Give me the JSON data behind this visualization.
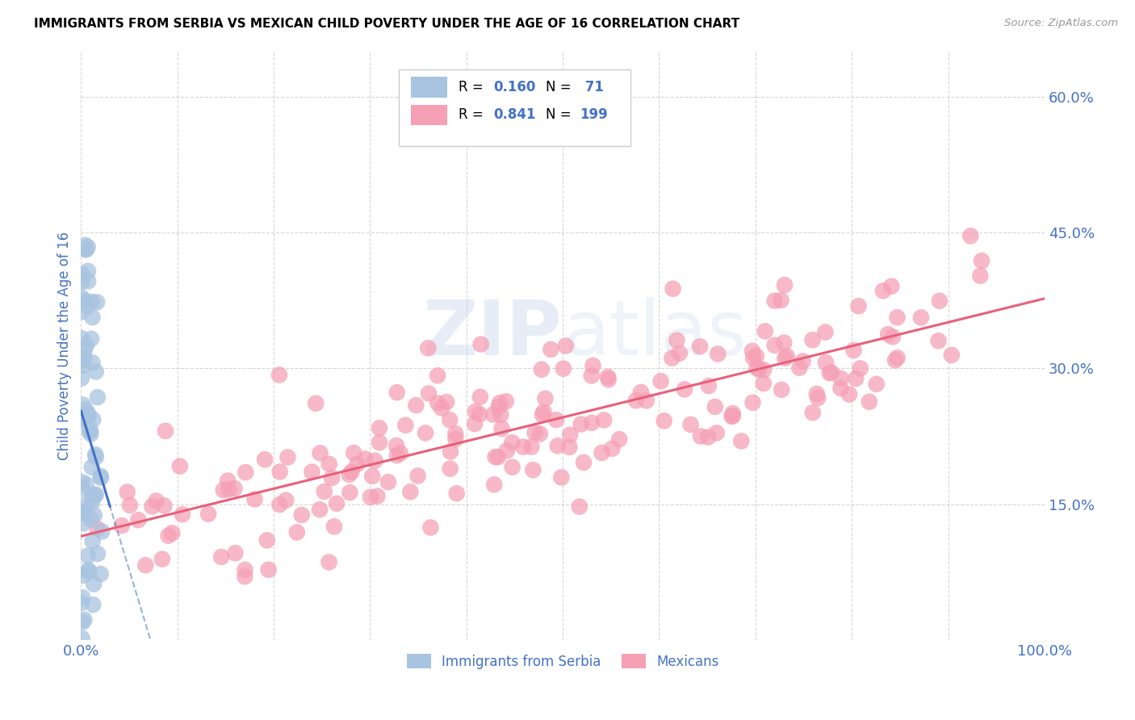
{
  "title": "IMMIGRANTS FROM SERBIA VS MEXICAN CHILD POVERTY UNDER THE AGE OF 16 CORRELATION CHART",
  "source": "Source: ZipAtlas.com",
  "ylabel": "Child Poverty Under the Age of 16",
  "xlim": [
    0.0,
    1.0
  ],
  "ylim": [
    0.0,
    0.65
  ],
  "ytick_vals": [
    0.0,
    0.15,
    0.3,
    0.45,
    0.6
  ],
  "ytick_labels": [
    "",
    "15.0%",
    "30.0%",
    "45.0%",
    "60.0%"
  ],
  "xtick_vals": [
    0.0,
    0.1,
    0.2,
    0.3,
    0.4,
    0.5,
    0.6,
    0.7,
    0.8,
    0.9,
    1.0
  ],
  "xtick_labels": [
    "0.0%",
    "",
    "",
    "",
    "",
    "",
    "",
    "",
    "",
    "",
    "100.0%"
  ],
  "serbia_R": 0.16,
  "serbia_N": 71,
  "mexico_R": 0.841,
  "mexico_N": 199,
  "serbia_color": "#a8c4e0",
  "mexico_color": "#f5a0b5",
  "serbia_line_color": "#4472c4",
  "mexico_line_color": "#e8607a",
  "watermark_zip": "ZIP",
  "watermark_atlas": "atlas",
  "title_fontsize": 11,
  "tick_label_color": "#4472c4",
  "grid_color": "#cccccc",
  "background_color": "#ffffff",
  "serbia_seed": 123,
  "mexico_seed": 456
}
